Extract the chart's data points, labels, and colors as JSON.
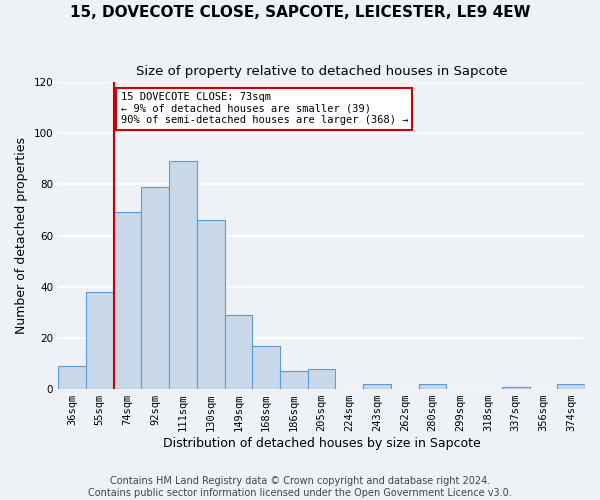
{
  "title": "15, DOVECOTE CLOSE, SAPCOTE, LEICESTER, LE9 4EW",
  "subtitle": "Size of property relative to detached houses in Sapcote",
  "xlabel": "Distribution of detached houses by size in Sapcote",
  "ylabel": "Number of detached properties",
  "bar_values": [
    9,
    38,
    69,
    79,
    89,
    66,
    29,
    17,
    7,
    8,
    0,
    2,
    0,
    2,
    0,
    0,
    1,
    0,
    2
  ],
  "bin_labels": [
    "36sqm",
    "55sqm",
    "74sqm",
    "92sqm",
    "111sqm",
    "130sqm",
    "149sqm",
    "168sqm",
    "186sqm",
    "205sqm",
    "224sqm",
    "243sqm",
    "262sqm",
    "280sqm",
    "299sqm",
    "318sqm",
    "337sqm",
    "356sqm",
    "374sqm"
  ],
  "bar_color": "#c8d8e8",
  "bar_edge_color": "#5b9bd5",
  "vline_color": "#cc0000",
  "annotation_box_text": "15 DOVECOTE CLOSE: 73sqm\n← 9% of detached houses are smaller (39)\n90% of semi-detached houses are larger (368) →",
  "annotation_box_edge_color": "#cc0000",
  "ylim": [
    0,
    120
  ],
  "yticks": [
    0,
    20,
    40,
    60,
    80,
    100,
    120
  ],
  "footer_line1": "Contains HM Land Registry data © Crown copyright and database right 2024.",
  "footer_line2": "Contains public sector information licensed under the Open Government Licence v3.0.",
  "background_color": "#eef2f7",
  "plot_background_color": "#eef2f7",
  "grid_color": "#ffffff",
  "title_fontsize": 11,
  "subtitle_fontsize": 9.5,
  "tick_fontsize": 7.5,
  "label_fontsize": 9,
  "footer_fontsize": 7
}
